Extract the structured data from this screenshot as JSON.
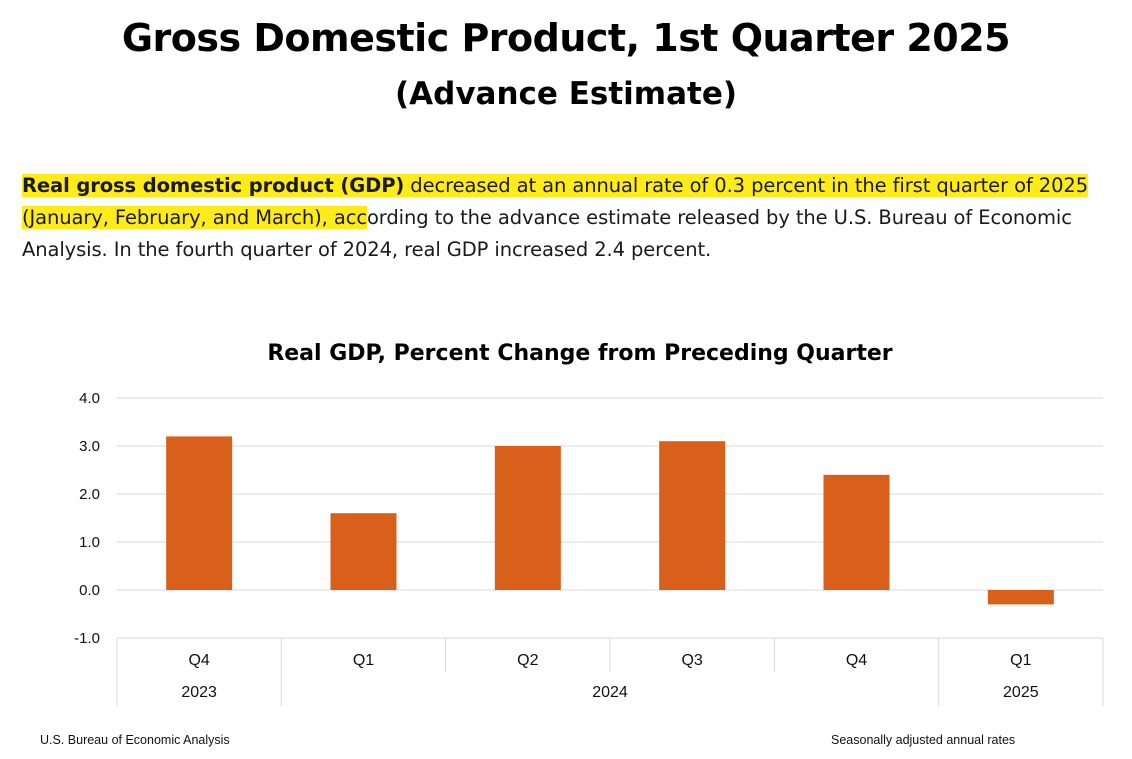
{
  "header": {
    "title": "Gross Domestic Product, 1st Quarter 2025",
    "subtitle": "(Advance Estimate)"
  },
  "summary": {
    "highlight_bold": "Real gross domestic product (GDP)",
    "highlight_rest": " decreased at an annual rate of 0.3 percent in the first quarter of 2025 (January, February, and March), acc",
    "rest": "ording to the advance estimate released by the U.S. Bureau of Economic Analysis. In the fourth quarter of 2024, real GDP increased 2.4 percent."
  },
  "chart_data": {
    "type": "bar",
    "title": "Real GDP, Percent Change from Preceding Quarter",
    "categories": [
      "Q4",
      "Q1",
      "Q2",
      "Q3",
      "Q4",
      "Q1"
    ],
    "groups": [
      {
        "label": "2023",
        "count": 1
      },
      {
        "label": "2024",
        "count": 4
      },
      {
        "label": "2025",
        "count": 1
      }
    ],
    "values": [
      3.2,
      1.6,
      3.0,
      3.1,
      2.4,
      -0.3
    ],
    "ylim": [
      -1.0,
      4.0
    ],
    "yticks": [
      "4.0",
      "3.0",
      "2.0",
      "1.0",
      "0.0",
      "-1.0"
    ],
    "ytick_values": [
      4,
      3,
      2,
      1,
      0,
      -1
    ],
    "xlabel": "",
    "ylabel": "",
    "grid": true,
    "bar_color": "#d9601a"
  },
  "footer": {
    "source": "U.S. Bureau of Economic Analysis",
    "note": "Seasonally adjusted annual rates"
  }
}
